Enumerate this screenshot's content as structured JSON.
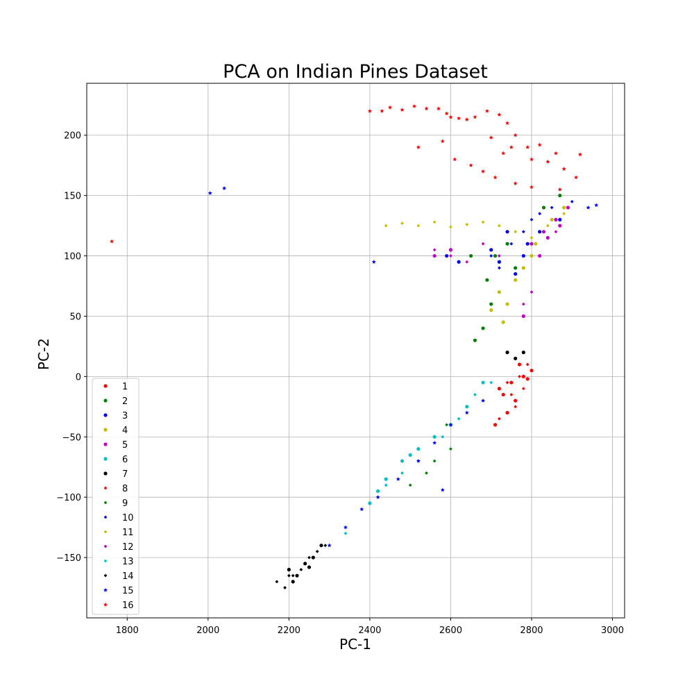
{
  "chart_data": {
    "type": "scatter",
    "title": "PCA on Indian Pines Dataset",
    "xlabel": "PC-1",
    "ylabel": "PC-2",
    "xlim": [
      1700,
      3030
    ],
    "ylim": [
      -200,
      243
    ],
    "xticks": [
      1800,
      2000,
      2200,
      2400,
      2600,
      2800,
      3000
    ],
    "yticks": [
      -150,
      -100,
      -50,
      0,
      50,
      100,
      150,
      200
    ],
    "grid": true,
    "legend_position": "lower-left",
    "colors": {
      "red": "#ff0000",
      "green": "#008000",
      "blue": "#0000ff",
      "yellow": "#bfbf00",
      "magenta": "#bf00bf",
      "cyan": "#00bfbf",
      "black": "#000000"
    },
    "series": [
      {
        "name": "1",
        "color": "#ff0000",
        "marker": "circle",
        "points": [
          [
            2720,
            -10
          ],
          [
            2750,
            -5
          ],
          [
            2780,
            0
          ],
          [
            2800,
            5
          ],
          [
            2760,
            -20
          ],
          [
            2740,
            -30
          ],
          [
            2710,
            -40
          ],
          [
            2790,
            -2
          ],
          [
            2770,
            10
          ],
          [
            2730,
            -15
          ]
        ]
      },
      {
        "name": "2",
        "color": "#008000",
        "marker": "circle",
        "points": [
          [
            2690,
            80
          ],
          [
            2710,
            100
          ],
          [
            2680,
            40
          ],
          [
            2700,
            60
          ],
          [
            2660,
            30
          ],
          [
            2650,
            100
          ],
          [
            2740,
            110
          ],
          [
            2830,
            140
          ],
          [
            2870,
            150
          ],
          [
            2760,
            90
          ]
        ]
      },
      {
        "name": "3",
        "color": "#0000ff",
        "marker": "circle",
        "points": [
          [
            2700,
            105
          ],
          [
            2740,
            120
          ],
          [
            2760,
            85
          ],
          [
            2780,
            100
          ],
          [
            2820,
            120
          ],
          [
            2870,
            130
          ],
          [
            2590,
            100
          ],
          [
            2620,
            95
          ],
          [
            2720,
            95
          ],
          [
            2790,
            110
          ]
        ]
      },
      {
        "name": "4",
        "color": "#bfbf00",
        "marker": "circle",
        "points": [
          [
            2720,
            70
          ],
          [
            2740,
            60
          ],
          [
            2760,
            80
          ],
          [
            2780,
            90
          ],
          [
            2810,
            110
          ],
          [
            2850,
            130
          ],
          [
            2880,
            140
          ],
          [
            2730,
            45
          ],
          [
            2700,
            55
          ],
          [
            2800,
            100
          ]
        ]
      },
      {
        "name": "5",
        "color": "#bf00bf",
        "marker": "circle",
        "points": [
          [
            2800,
            110
          ],
          [
            2830,
            120
          ],
          [
            2860,
            130
          ],
          [
            2890,
            140
          ],
          [
            2820,
            100
          ],
          [
            2560,
            100
          ],
          [
            2600,
            105
          ],
          [
            2780,
            50
          ],
          [
            2840,
            115
          ],
          [
            2870,
            125
          ]
        ]
      },
      {
        "name": "6",
        "color": "#00bfbf",
        "marker": "circle",
        "points": [
          [
            2400,
            -105
          ],
          [
            2440,
            -85
          ],
          [
            2480,
            -70
          ],
          [
            2520,
            -60
          ],
          [
            2560,
            -50
          ],
          [
            2600,
            -40
          ],
          [
            2640,
            -25
          ],
          [
            2680,
            -5
          ],
          [
            2420,
            -95
          ],
          [
            2500,
            -65
          ]
        ]
      },
      {
        "name": "7",
        "color": "#000000",
        "marker": "circle",
        "points": [
          [
            2200,
            -160
          ],
          [
            2220,
            -165
          ],
          [
            2240,
            -155
          ],
          [
            2260,
            -150
          ],
          [
            2280,
            -140
          ],
          [
            2740,
            20
          ],
          [
            2760,
            15
          ],
          [
            2780,
            20
          ],
          [
            2210,
            -170
          ],
          [
            2250,
            -158
          ]
        ]
      },
      {
        "name": "8",
        "color": "#ff0000",
        "marker": "diamond",
        "points": [
          [
            2740,
            -5
          ],
          [
            2770,
            0
          ],
          [
            2790,
            10
          ],
          [
            2760,
            -25
          ],
          [
            2720,
            -35
          ],
          [
            2800,
            5
          ],
          [
            2750,
            -15
          ],
          [
            2780,
            -10
          ]
        ]
      },
      {
        "name": "9",
        "color": "#008000",
        "marker": "diamond",
        "points": [
          [
            2590,
            -40
          ],
          [
            2600,
            -60
          ],
          [
            2560,
            -70
          ],
          [
            2500,
            -90
          ],
          [
            2540,
            -80
          ]
        ]
      },
      {
        "name": "10",
        "color": "#0000ff",
        "marker": "diamond",
        "points": [
          [
            2750,
            110
          ],
          [
            2800,
            130
          ],
          [
            2850,
            140
          ],
          [
            2900,
            145
          ],
          [
            2720,
            90
          ],
          [
            2700,
            100
          ],
          [
            2780,
            120
          ],
          [
            2820,
            135
          ]
        ]
      },
      {
        "name": "11",
        "color": "#bfbf00",
        "marker": "diamond",
        "points": [
          [
            2440,
            125
          ],
          [
            2480,
            127
          ],
          [
            2520,
            125
          ],
          [
            2560,
            128
          ],
          [
            2600,
            124
          ],
          [
            2640,
            126
          ],
          [
            2680,
            128
          ],
          [
            2720,
            125
          ],
          [
            2760,
            120
          ],
          [
            2800,
            115
          ],
          [
            2840,
            125
          ],
          [
            2880,
            135
          ]
        ]
      },
      {
        "name": "12",
        "color": "#bf00bf",
        "marker": "diamond",
        "points": [
          [
            2560,
            105
          ],
          [
            2600,
            100
          ],
          [
            2640,
            95
          ],
          [
            2680,
            110
          ],
          [
            2720,
            100
          ],
          [
            2780,
            60
          ],
          [
            2800,
            70
          ],
          [
            2860,
            120
          ]
        ]
      },
      {
        "name": "13",
        "color": "#00bfbf",
        "marker": "diamond",
        "points": [
          [
            2440,
            -90
          ],
          [
            2480,
            -80
          ],
          [
            2520,
            -70
          ],
          [
            2580,
            -50
          ],
          [
            2620,
            -35
          ],
          [
            2660,
            -15
          ],
          [
            2700,
            -5
          ],
          [
            2340,
            -130
          ]
        ]
      },
      {
        "name": "14",
        "color": "#000000",
        "marker": "diamond",
        "points": [
          [
            2170,
            -170
          ],
          [
            2190,
            -175
          ],
          [
            2210,
            -165
          ],
          [
            2230,
            -160
          ],
          [
            2250,
            -150
          ],
          [
            2270,
            -145
          ],
          [
            2290,
            -140
          ],
          [
            2200,
            -165
          ]
        ]
      },
      {
        "name": "15",
        "color": "#0000ff",
        "marker": "star",
        "points": [
          [
            2005,
            152
          ],
          [
            2040,
            156
          ],
          [
            2410,
            95
          ],
          [
            2300,
            -140
          ],
          [
            2340,
            -125
          ],
          [
            2380,
            -110
          ],
          [
            2420,
            -100
          ],
          [
            2470,
            -85
          ],
          [
            2520,
            -70
          ],
          [
            2560,
            -55
          ],
          [
            2600,
            -40
          ],
          [
            2640,
            -30
          ],
          [
            2680,
            -20
          ],
          [
            2580,
            -94
          ],
          [
            2940,
            140
          ],
          [
            2960,
            142
          ]
        ]
      },
      {
        "name": "16",
        "color": "#ff0000",
        "marker": "star",
        "points": [
          [
            1762,
            112
          ],
          [
            2400,
            220
          ],
          [
            2430,
            220
          ],
          [
            2450,
            223
          ],
          [
            2480,
            221
          ],
          [
            2510,
            224
          ],
          [
            2540,
            222
          ],
          [
            2570,
            222
          ],
          [
            2590,
            218
          ],
          [
            2600,
            215
          ],
          [
            2620,
            214
          ],
          [
            2640,
            213
          ],
          [
            2660,
            215
          ],
          [
            2690,
            220
          ],
          [
            2720,
            217
          ],
          [
            2740,
            210
          ],
          [
            2760,
            200
          ],
          [
            2790,
            190
          ],
          [
            2820,
            192
          ],
          [
            2860,
            185
          ],
          [
            2880,
            172
          ],
          [
            2610,
            180
          ],
          [
            2650,
            175
          ],
          [
            2700,
            198
          ],
          [
            2730,
            185
          ],
          [
            2750,
            190
          ],
          [
            2800,
            180
          ],
          [
            2840,
            178
          ],
          [
            2920,
            184
          ],
          [
            2910,
            165
          ],
          [
            2520,
            190
          ],
          [
            2580,
            195
          ],
          [
            2680,
            170
          ],
          [
            2710,
            165
          ],
          [
            2760,
            160
          ],
          [
            2800,
            157
          ],
          [
            2870,
            155
          ]
        ]
      }
    ]
  }
}
